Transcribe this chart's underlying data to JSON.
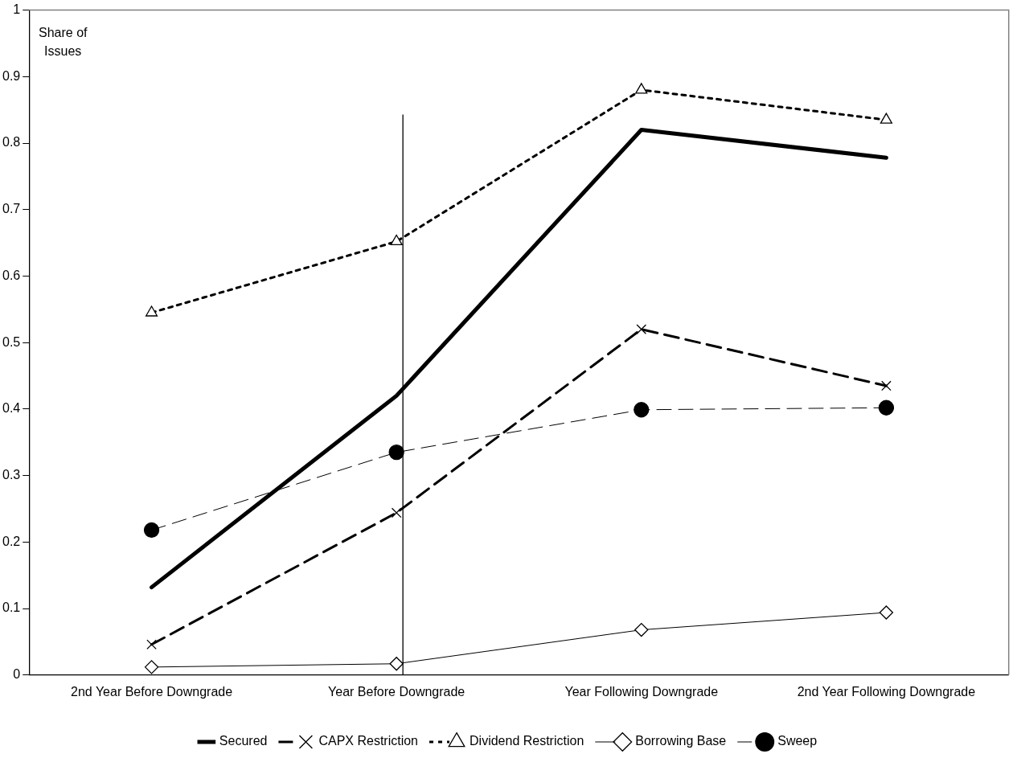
{
  "chart_data": {
    "type": "line",
    "ylabel": "Share of Issues",
    "categories": [
      "2nd Year Before Downgrade",
      "Year Before Downgrade",
      "Year Following Downgrade",
      "2nd Year Following Downgrade"
    ],
    "series": [
      {
        "name": "Secured",
        "color": "#000000",
        "values": [
          0.132,
          0.42,
          0.82,
          0.778
        ],
        "marker": "none",
        "line_style": "solid"
      },
      {
        "name": "CAPX Restriction",
        "color": "#000000",
        "values": [
          0.046,
          0.244,
          0.52,
          0.435
        ],
        "marker": "cross",
        "line_style": "dashed"
      },
      {
        "name": "Dividend Restriction",
        "color": "#000000",
        "values": [
          0.545,
          0.652,
          0.88,
          0.835
        ],
        "marker": "triangle",
        "line_style": "dotted"
      },
      {
        "name": "Borrowing Base",
        "color": "#000000",
        "values": [
          0.012,
          0.017,
          0.068,
          0.094
        ],
        "marker": "diamond",
        "line_style": "solid"
      },
      {
        "name": "Sweep",
        "color": "#000000",
        "values": [
          0.218,
          0.335,
          0.399,
          0.402
        ],
        "marker": "circle",
        "line_style": "dashed"
      }
    ],
    "ylim": [
      0,
      1
    ],
    "yticks": [
      0,
      0.1,
      0.2,
      0.3,
      0.4,
      0.5,
      0.6,
      0.7,
      0.8,
      0.9,
      1
    ],
    "ref_lines": [
      {
        "axis": "x",
        "value": "Year Before Downgrade",
        "color": "#000000"
      }
    ],
    "grid": false,
    "legend": "bottom"
  }
}
